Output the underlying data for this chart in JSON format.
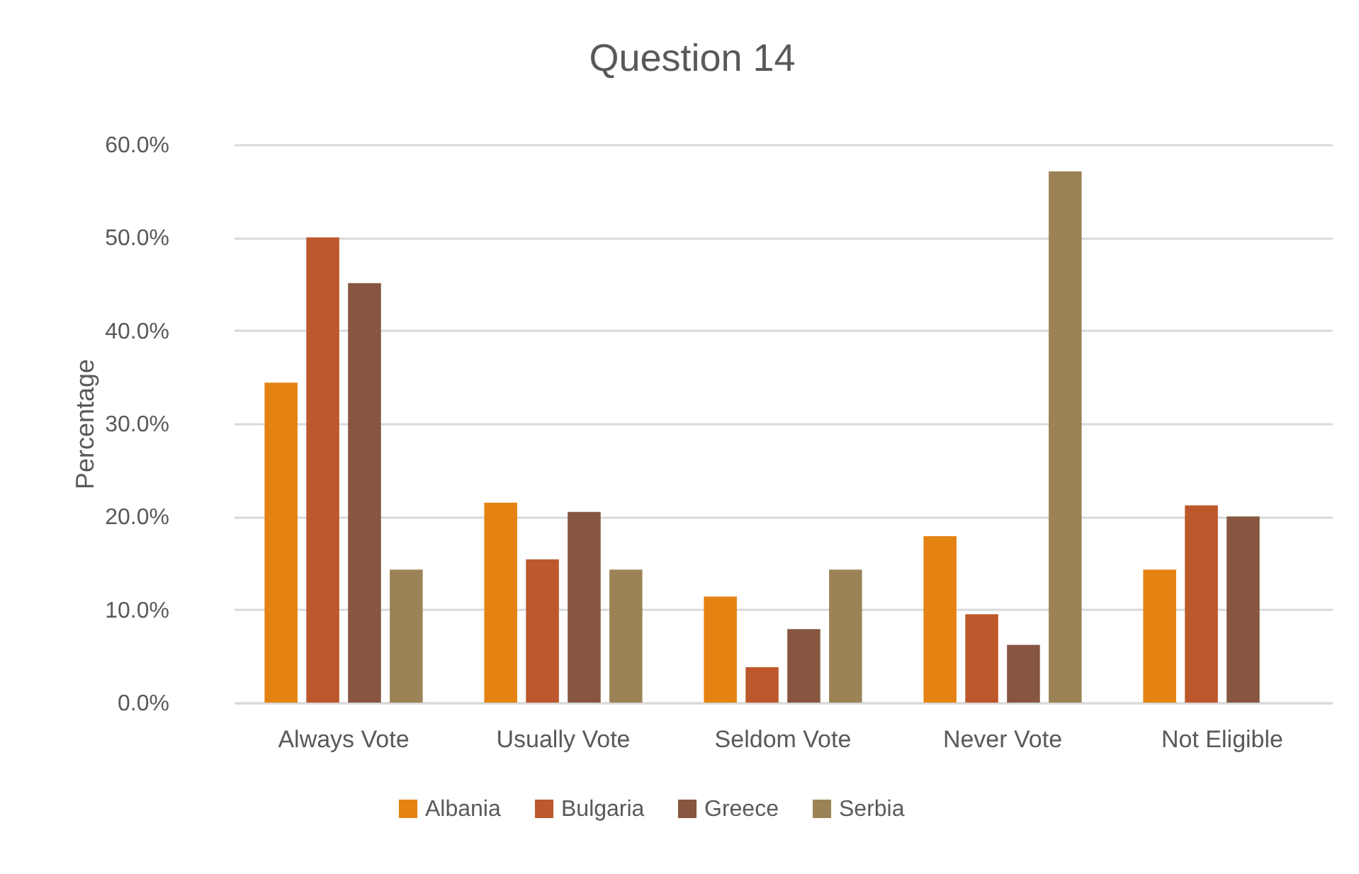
{
  "chart_data": {
    "type": "bar",
    "title": "Question 14",
    "ylabel": "Percentage",
    "categories": [
      "Always Vote",
      "Usually Vote",
      "Seldom Vote",
      "Never Vote",
      "Not Eligible"
    ],
    "series": [
      {
        "name": "Albania",
        "color": "#e48312",
        "values": [
          34.4,
          21.5,
          11.4,
          17.9,
          14.3
        ]
      },
      {
        "name": "Bulgaria",
        "color": "#bd582c",
        "values": [
          50.0,
          15.4,
          3.8,
          9.5,
          21.2
        ]
      },
      {
        "name": "Greece",
        "color": "#865640",
        "values": [
          45.1,
          20.5,
          7.9,
          6.2,
          20.0
        ]
      },
      {
        "name": "Serbia",
        "color": "#9b8357",
        "values": [
          14.3,
          14.3,
          14.3,
          57.1,
          null
        ]
      }
    ],
    "ylim": [
      0,
      60
    ],
    "yticks": [
      {
        "value": 0,
        "label": "0.0%"
      },
      {
        "value": 10,
        "label": "10.0%"
      },
      {
        "value": 20,
        "label": "20.0%"
      },
      {
        "value": 30,
        "label": "30.0%"
      },
      {
        "value": 40,
        "label": "40.0%"
      },
      {
        "value": 50,
        "label": "50.0%"
      },
      {
        "value": 60,
        "label": "60.0%"
      }
    ],
    "grid": "y",
    "legend": "bottom"
  }
}
